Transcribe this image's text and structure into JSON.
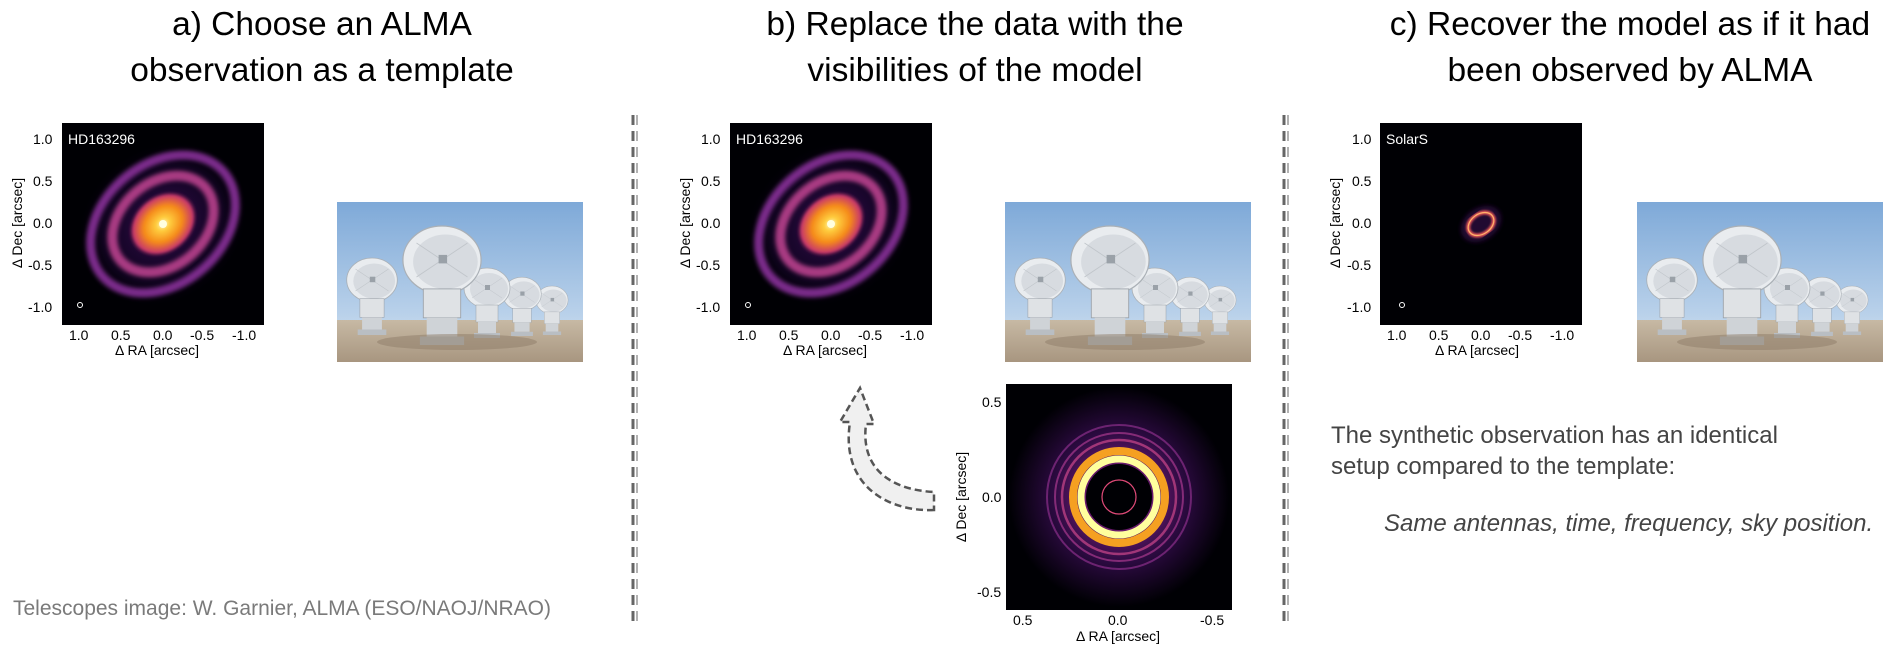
{
  "columns": [
    {
      "title_line1": "a) Choose an ALMA",
      "title_line2": "observation as a template",
      "panel_label": "HD163296",
      "colormap": "inferno",
      "yticks": [
        "1.0",
        "0.5",
        "0.0",
        "-0.5",
        "-1.0"
      ],
      "xticks": [
        "1.0",
        "0.5",
        "0.0",
        "-0.5",
        "-1.0"
      ],
      "xlabel": "Δ RA [arcsec]",
      "ylabel": "Δ Dec [arcsec]",
      "photo": "alma-antennas-photo"
    },
    {
      "title_line1": "b) Replace the data with the",
      "title_line2": "visibilities of the model",
      "panel_label": "HD163296",
      "colormap": "inferno",
      "yticks": [
        "1.0",
        "0.5",
        "0.0",
        "-0.5",
        "-1.0"
      ],
      "xticks": [
        "1.0",
        "0.5",
        "0.0",
        "-0.5",
        "-1.0"
      ],
      "xlabel": "Δ RA [arcsec]",
      "ylabel": "Δ Dec [arcsec]",
      "photo": "alma-antennas-photo",
      "model": {
        "yticks": [
          "0.5",
          "0.0",
          "-0.5"
        ],
        "xticks": [
          "0.5",
          "0.0",
          "-0.5"
        ],
        "xlabel": "Δ RA [arcsec]",
        "ylabel": "Δ Dec [arcsec]"
      }
    },
    {
      "title_line1": "c) Recover the model as if it had",
      "title_line2": "been observed by ALMA",
      "panel_label": "SolarS",
      "colormap": "inferno",
      "yticks": [
        "1.0",
        "0.5",
        "0.0",
        "-0.5",
        "-1.0"
      ],
      "xticks": [
        "1.0",
        "0.5",
        "0.0",
        "-0.5",
        "-1.0"
      ],
      "xlabel": "Δ RA [arcsec]",
      "ylabel": "Δ Dec [arcsec]",
      "photo": "alma-antennas-photo",
      "note_line1": "The synthetic observation has an identical",
      "note_line2": "setup compared to the template:",
      "note_italic": "Same antennas, time, frequency, sky position."
    }
  ],
  "credit": "Telescopes image: W. Garnier, ALMA (ESO/NAOJ/NRAO)",
  "colors": {
    "separator": "#666666",
    "arrow_fill": "#f0f0f0",
    "arrow_stroke": "#555555",
    "text_grey": "#444444",
    "credit_grey": "#7a7a7a"
  }
}
